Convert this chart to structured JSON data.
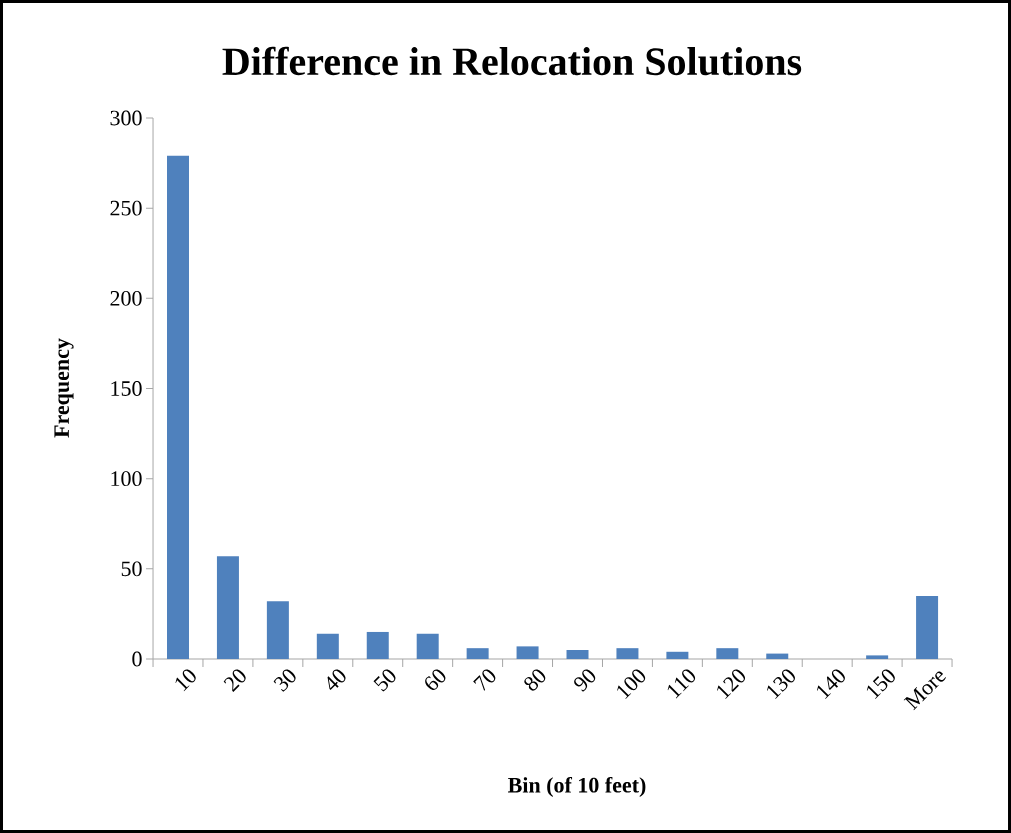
{
  "chart_data": {
    "type": "bar",
    "title": "Difference in Relocation Solutions",
    "xlabel": "Bin (of 10 feet)",
    "ylabel": "Frequency",
    "categories": [
      "10",
      "20",
      "30",
      "40",
      "50",
      "60",
      "70",
      "80",
      "90",
      "100",
      "110",
      "120",
      "130",
      "140",
      "150",
      "More"
    ],
    "values": [
      279,
      57,
      32,
      14,
      15,
      14,
      6,
      7,
      5,
      6,
      4,
      6,
      3,
      0,
      2,
      35
    ],
    "color": "#4f81bd",
    "ylim": [
      0,
      300
    ],
    "yticks": [
      0,
      50,
      100,
      150,
      200,
      250,
      300
    ]
  }
}
